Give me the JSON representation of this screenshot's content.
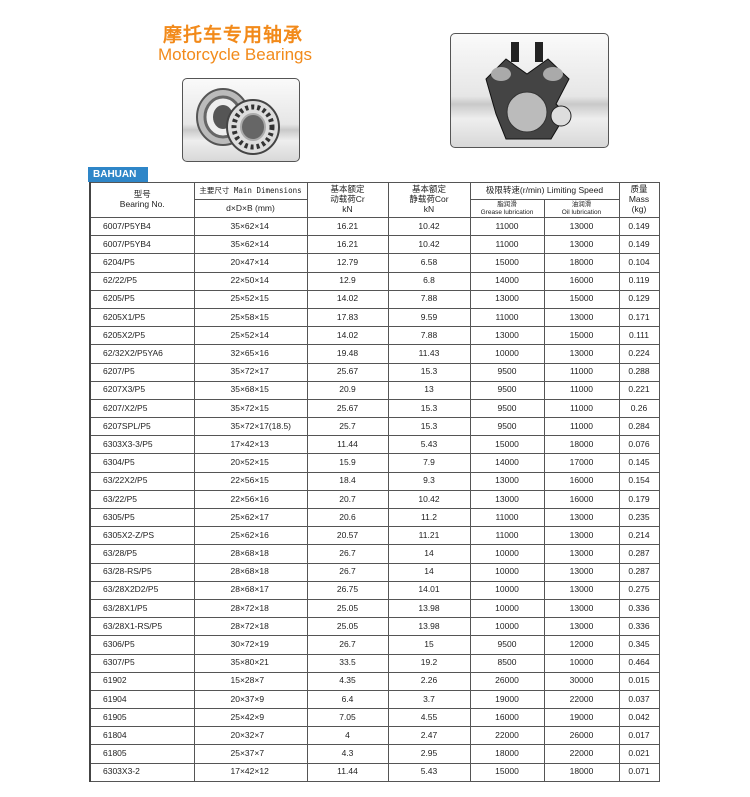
{
  "header": {
    "title_cn": "摩托车专用轴承",
    "title_en": "Motorcycle Bearings",
    "accent_color": "#f28a1a"
  },
  "images": {
    "bearing": "bearing-photo",
    "engine": "motorcycle-engine-photo"
  },
  "brand_tab": "BAHUAN",
  "table": {
    "col_bearing_cn": "型号",
    "col_bearing_en": "Bearing No.",
    "col_dims_title": "主要尺寸 Main Dimensions",
    "col_dims_sub": "d×D×B  (mm)",
    "col_cr_1": "基本额定",
    "col_cr_2": "动载荷Cr",
    "col_cr_3": "kN",
    "col_cor_1": "基本额定",
    "col_cor_2": "静载荷Cor",
    "col_cor_3": "kN",
    "col_speed_title": "极限转速(r/min)  Limiting Speed",
    "col_grease_cn": "脂润滑",
    "col_grease_en": "Grease lubrication",
    "col_oil_cn": "油润滑",
    "col_oil_en": "Oil lubrication",
    "col_mass_1": "质量",
    "col_mass_2": "Mass",
    "col_mass_3": "(kg)",
    "rows": [
      [
        "6007/P5YB4",
        "35×62×14",
        "16.21",
        "10.42",
        "11000",
        "13000",
        "0.149"
      ],
      [
        "6007/P5YB4",
        "35×62×14",
        "16.21",
        "10.42",
        "11000",
        "13000",
        "0.149"
      ],
      [
        "6204/P5",
        "20×47×14",
        "12.79",
        "6.58",
        "15000",
        "18000",
        "0.104"
      ],
      [
        "62/22/P5",
        "22×50×14",
        "12.9",
        "6.8",
        "14000",
        "16000",
        "0.119"
      ],
      [
        "6205/P5",
        "25×52×15",
        "14.02",
        "7.88",
        "13000",
        "15000",
        "0.129"
      ],
      [
        "6205X1/P5",
        "25×58×15",
        "17.83",
        "9.59",
        "11000",
        "13000",
        "0.171"
      ],
      [
        "6205X2/P5",
        "25×52×14",
        "14.02",
        "7.88",
        "13000",
        "15000",
        "0.111"
      ],
      [
        "62/32X2/P5YA6",
        "32×65×16",
        "19.48",
        "11.43",
        "10000",
        "13000",
        "0.224"
      ],
      [
        "6207/P5",
        "35×72×17",
        "25.67",
        "15.3",
        "9500",
        "11000",
        "0.288"
      ],
      [
        "6207X3/P5",
        "35×68×15",
        "20.9",
        "13",
        "9500",
        "11000",
        "0.221"
      ],
      [
        "6207/X2/P5",
        "35×72×15",
        "25.67",
        "15.3",
        "9500",
        "11000",
        "0.26"
      ],
      [
        "6207SPL/P5",
        "35×72×17(18.5)",
        "25.7",
        "15.3",
        "9500",
        "11000",
        "0.284"
      ],
      [
        "6303X3-3/P5",
        "17×42×13",
        "11.44",
        "5.43",
        "15000",
        "18000",
        "0.076"
      ],
      [
        "6304/P5",
        "20×52×15",
        "15.9",
        "7.9",
        "14000",
        "17000",
        "0.145"
      ],
      [
        "63/22X2/P5",
        "22×56×15",
        "18.4",
        "9.3",
        "13000",
        "16000",
        "0.154"
      ],
      [
        "63/22/P5",
        "22×56×16",
        "20.7",
        "10.42",
        "13000",
        "16000",
        "0.179"
      ],
      [
        "6305/P5",
        "25×62×17",
        "20.6",
        "11.2",
        "11000",
        "13000",
        "0.235"
      ],
      [
        "6305X2-Z/PS",
        "25×62×16",
        "20.57",
        "11.21",
        "11000",
        "13000",
        "0.214"
      ],
      [
        "63/28/P5",
        "28×68×18",
        "26.7",
        "14",
        "10000",
        "13000",
        "0.287"
      ],
      [
        "63/28-RS/P5",
        "28×68×18",
        "26.7",
        "14",
        "10000",
        "13000",
        "0.287"
      ],
      [
        "63/28X2D2/P5",
        "28×68×17",
        "26.75",
        "14.01",
        "10000",
        "13000",
        "0.275"
      ],
      [
        "63/28X1/P5",
        "28×72×18",
        "25.05",
        "13.98",
        "10000",
        "13000",
        "0.336"
      ],
      [
        "63/28X1-RS/P5",
        "28×72×18",
        "25.05",
        "13.98",
        "10000",
        "13000",
        "0.336"
      ],
      [
        "6306/P5",
        "30×72×19",
        "26.7",
        "15",
        "9500",
        "12000",
        "0.345"
      ],
      [
        "6307/P5",
        "35×80×21",
        "33.5",
        "19.2",
        "8500",
        "10000",
        "0.464"
      ],
      [
        "61902",
        "15×28×7",
        "4.35",
        "2.26",
        "26000",
        "30000",
        "0.015"
      ],
      [
        "61904",
        "20×37×9",
        "6.4",
        "3.7",
        "19000",
        "22000",
        "0.037"
      ],
      [
        "61905",
        "25×42×9",
        "7.05",
        "4.55",
        "16000",
        "19000",
        "0.042"
      ],
      [
        "61804",
        "20×32×7",
        "4",
        "2.47",
        "22000",
        "26000",
        "0.017"
      ],
      [
        "61805",
        "25×37×7",
        "4.3",
        "2.95",
        "18000",
        "22000",
        "0.021"
      ],
      [
        "6303X3-2",
        "17×42×12",
        "11.44",
        "5.43",
        "15000",
        "18000",
        "0.071"
      ]
    ]
  }
}
